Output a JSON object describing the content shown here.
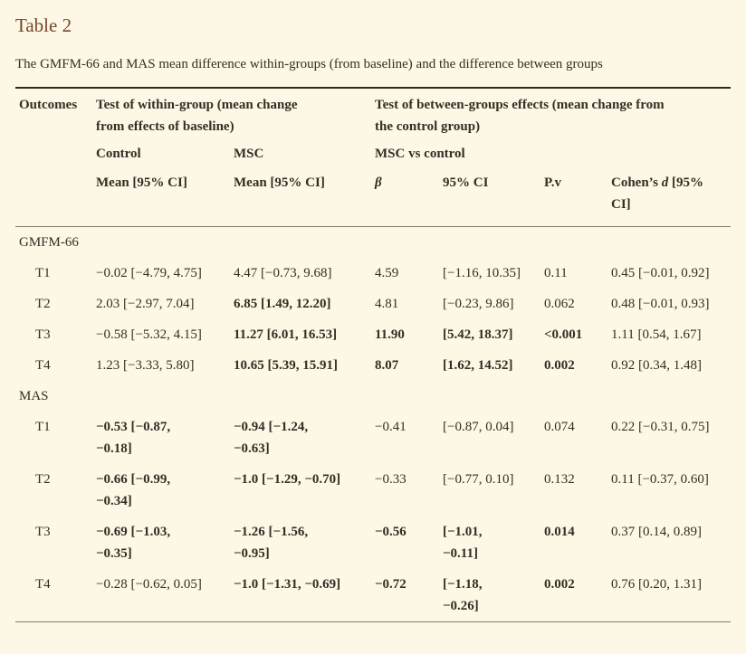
{
  "page": {
    "title": "Table 2",
    "subtitle": "The GMFM-66 and MAS mean difference within-groups (from baseline) and the difference between groups"
  },
  "colors": {
    "background": "#fcf8e5",
    "title_text": "#77452c",
    "body_text": "#332e26",
    "rule_top": "#2b2a26",
    "rule_light": "#7f7d72"
  },
  "table": {
    "header": {
      "outcomes": "Outcomes",
      "within_group": "Test of within-group (mean change\nfrom effects of baseline)",
      "between_groups": "Test of between-groups effects (mean change from\nthe control group)",
      "control": "Control",
      "msc": "MSC",
      "msc_vs_control": "MSC vs control",
      "mean_ci_control": "Mean [95% CI]",
      "mean_ci_msc": "Mean [95% CI]",
      "beta": "β",
      "ci_95": "95% CI",
      "p_value": "P.v",
      "cohens_prefix": "Cohen’s ",
      "cohens_d": "d",
      "cohens_suffix": " [95%\nCI]"
    },
    "sections": [
      {
        "label": "GMFM-66",
        "rows": [
          {
            "time": "T1",
            "control": "−0.02 [−4.79, 4.75]",
            "msc": "4.47 [−0.73, 9.68]",
            "beta": "4.59",
            "ci": "[−1.16, 10.35]",
            "pv": "0.11",
            "cohen": "0.45 [−0.01, 0.92]"
          },
          {
            "time": "T2",
            "control": "2.03 [−2.97, 7.04]",
            "msc": "6.85 [1.49, 12.20]",
            "beta": "4.81",
            "ci": "[−0.23, 9.86]",
            "pv": "0.062",
            "cohen": "0.48 [−0.01, 0.93]"
          },
          {
            "time": "T3",
            "control": "−0.58 [−5.32, 4.15]",
            "msc": "11.27 [6.01, 16.53]",
            "beta": "11.90",
            "ci": "[5.42, 18.37]",
            "pv": "<0.001",
            "cohen": "1.11 [0.54, 1.67]"
          },
          {
            "time": "T4",
            "control": "1.23 [−3.33, 5.80]",
            "msc": "10.65 [5.39, 15.91]",
            "beta": "8.07",
            "ci": "[1.62, 14.52]",
            "pv": "0.002",
            "cohen": "0.92 [0.34, 1.48]"
          }
        ]
      },
      {
        "label": "MAS",
        "rows": [
          {
            "time": "T1",
            "control": "−0.53 [−0.87,\n−0.18]",
            "msc": "−0.94 [−1.24,\n−0.63]",
            "beta": "−0.41",
            "ci": "[−0.87, 0.04]",
            "pv": "0.074",
            "cohen": "0.22 [−0.31, 0.75]"
          },
          {
            "time": "T2",
            "control": "−0.66 [−0.99,\n−0.34]",
            "msc": "−1.0 [−1.29, −0.70]",
            "beta": "−0.33",
            "ci": "[−0.77, 0.10]",
            "pv": "0.132",
            "cohen": "0.11 [−0.37, 0.60]"
          },
          {
            "time": "T3",
            "control": "−0.69 [−1.03,\n−0.35]",
            "msc": "−1.26 [−1.56,\n−0.95]",
            "beta": "−0.56",
            "ci": "[−1.01,\n−0.11]",
            "pv": "0.014",
            "cohen": "0.37 [0.14, 0.89]"
          },
          {
            "time": "T4",
            "control": "−0.28 [−0.62, 0.05]",
            "msc": "−1.0 [−1.31, −0.69]",
            "beta": "−0.72",
            "ci": "[−1.18,\n−0.26]",
            "pv": "0.002",
            "cohen": "0.76 [0.20, 1.31]"
          }
        ]
      }
    ]
  }
}
